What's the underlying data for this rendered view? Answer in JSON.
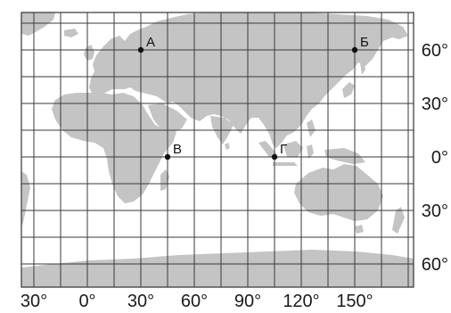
{
  "map": {
    "colors": {
      "background": "#ffffff",
      "land": "#c4c4c4",
      "grid": "#3a3a3a",
      "frame": "#333333",
      "point": "#111111"
    },
    "longitude_labels": [
      "30°",
      "0°",
      "30°",
      "60°",
      "90°",
      "120°",
      "150°"
    ],
    "latitude_labels": [
      "60°",
      "30°",
      "0°",
      "30°",
      "60°"
    ],
    "points": [
      {
        "label": "А",
        "lon": 30,
        "lat": 60
      },
      {
        "label": "Б",
        "lon": 150,
        "lat": 60
      },
      {
        "label": "В",
        "lon": 45,
        "lat": 0
      },
      {
        "label": "Г",
        "lon": 105,
        "lat": 0
      }
    ]
  }
}
